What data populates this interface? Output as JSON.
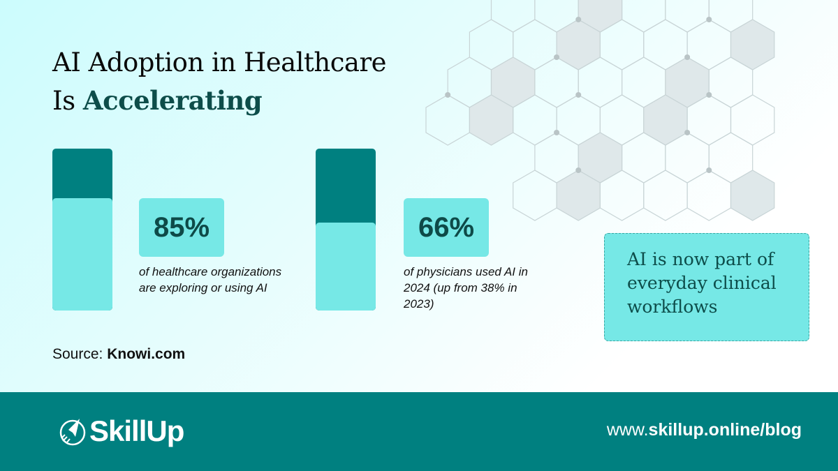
{
  "title": {
    "line1": "AI Adoption in Healthcare",
    "line2_prefix": "Is ",
    "line2_accent": "Accelerating"
  },
  "stats": [
    {
      "value": "85%",
      "description": "of healthcare organizations are exploring or using AI"
    },
    {
      "value": "66%",
      "description": "of physicians used AI in 2024 (up from 38% in 2023)"
    }
  ],
  "source": {
    "label": "Source: ",
    "name": "Knowi.com"
  },
  "callout": "AI is now part of everyday clinical workflows",
  "footer": {
    "brand": "SkillUp",
    "url_prefix": "www.",
    "url_main": "skillup.online/blog"
  },
  "colors": {
    "teal": "#008080",
    "light_teal": "#76e8e6",
    "dark_text": "#0d4d4a"
  }
}
